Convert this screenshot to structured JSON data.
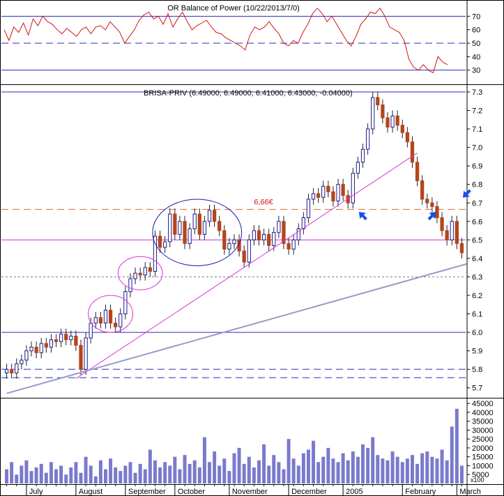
{
  "chart_data": [
    {
      "type": "line",
      "panel": "indicator",
      "title": "OR Balance of Power (10/22/2013/7/0)",
      "ylim": [
        20,
        80
      ],
      "yticks": [
        30,
        40,
        50,
        60,
        70
      ],
      "hlines": [
        {
          "y": 70,
          "style": "solid",
          "color": "#2b2bb5"
        },
        {
          "y": 50,
          "style": "dashed",
          "color": "#2b2bb5"
        },
        {
          "y": 30,
          "style": "solid",
          "color": "#2b2bb5"
        }
      ],
      "series": [
        {
          "color": "#d21414",
          "values": [
            60,
            52,
            62,
            58,
            65,
            56,
            68,
            63,
            70,
            66,
            64,
            60,
            57,
            61,
            58,
            55,
            60,
            62,
            57,
            62,
            63,
            60,
            66,
            62,
            58,
            50,
            55,
            60,
            67,
            71,
            73,
            68,
            70,
            64,
            72,
            62,
            68,
            73,
            66,
            60,
            63,
            65,
            67,
            62,
            58,
            57,
            54,
            52,
            50,
            48,
            45,
            56,
            62,
            60,
            62,
            66,
            61,
            57,
            50,
            48,
            52,
            50,
            58,
            64,
            72,
            76,
            72,
            66,
            70,
            64,
            58,
            52,
            48,
            55,
            64,
            68,
            73,
            72,
            76,
            70,
            62,
            60,
            58,
            52,
            38,
            32,
            30,
            34,
            30,
            28,
            40,
            36,
            34
          ]
        }
      ]
    },
    {
      "type": "candlestick",
      "panel": "price",
      "title": "BRISA-PRIV (6.49000, 6.49000, 6.41000, 6.43000, -0.04000)",
      "ylim": [
        5.65,
        7.33
      ],
      "yticks": [
        5.7,
        5.8,
        5.9,
        6.0,
        6.1,
        6.2,
        6.3,
        6.4,
        6.5,
        6.6,
        6.7,
        6.8,
        6.9,
        7.0,
        7.1,
        7.2,
        7.3
      ],
      "ytick_labels": [
        "5.7",
        "5.8",
        "5.9",
        "6.0",
        "6.1",
        "6.2",
        "6.3",
        "6.4",
        "6.5",
        "6.6",
        "6.7",
        "6.8",
        "6.9",
        "7.0",
        "7.1",
        "7.2",
        "7.3"
      ],
      "close": [
        5.8,
        5.78,
        5.83,
        5.85,
        5.9,
        5.92,
        5.89,
        5.94,
        5.92,
        5.96,
        5.95,
        5.99,
        5.96,
        5.98,
        5.93,
        5.8,
        5.97,
        6.05,
        6.08,
        6.05,
        6.12,
        6.05,
        6.03,
        6.1,
        6.22,
        6.29,
        6.32,
        6.31,
        6.35,
        6.33,
        6.52,
        6.46,
        6.49,
        6.64,
        6.53,
        6.6,
        6.48,
        6.56,
        6.64,
        6.53,
        6.6,
        6.66,
        6.6,
        6.55,
        6.45,
        6.48,
        6.5,
        6.44,
        6.38,
        6.5,
        6.55,
        6.5,
        6.53,
        6.47,
        6.54,
        6.6,
        6.48,
        6.45,
        6.5,
        6.56,
        6.62,
        6.72,
        6.75,
        6.73,
        6.79,
        6.76,
        6.71,
        6.8,
        6.74,
        6.7,
        6.86,
        6.92,
        6.99,
        7.1,
        7.27,
        7.23,
        7.16,
        7.11,
        7.17,
        7.12,
        7.08,
        7.03,
        6.92,
        6.82,
        6.72,
        6.7,
        6.68,
        6.62,
        6.55,
        6.5,
        6.6,
        6.48,
        6.43
      ],
      "hlines": [
        {
          "y": 7.3,
          "style": "solid",
          "color": "#2b2bb5"
        },
        {
          "y": 6.665,
          "style": "dashed",
          "color": "#e07040",
          "label": "6,66€"
        },
        {
          "y": 6.5,
          "style": "solid",
          "color": "#d633d6"
        },
        {
          "y": 6.3,
          "style": "dotted",
          "color": "#808080"
        },
        {
          "y": 6.0,
          "style": "solid",
          "color": "#2b2bb5"
        },
        {
          "y": 5.8,
          "style": "dashed",
          "color": "#2b2bb5"
        },
        {
          "y": 5.755,
          "style": "dashed",
          "color": "#2b2bb5"
        }
      ],
      "annotations": [
        {
          "type": "trendline",
          "color": "#d633d6",
          "from": [
            14,
            5.75
          ],
          "to": [
            83,
            6.97
          ]
        },
        {
          "type": "trendline",
          "color": "#9999cc",
          "from": [
            0,
            5.67
          ],
          "to": [
            93,
            6.37
          ]
        },
        {
          "type": "ellipse",
          "color": "#d633d6",
          "cx": 21,
          "cy": 6.1,
          "rx": 4.5,
          "ry": 0.1
        },
        {
          "type": "ellipse",
          "color": "#d633d6",
          "cx": 27,
          "cy": 6.32,
          "rx": 4.5,
          "ry": 0.09
        },
        {
          "type": "ellipse",
          "color": "#1a1aa6",
          "cx": 38.5,
          "cy": 6.54,
          "rx": 9,
          "ry": 0.18
        },
        {
          "type": "arrow",
          "color": "#1a4fe0",
          "x": 72,
          "y": 6.63,
          "dir": "nw"
        },
        {
          "type": "arrow",
          "color": "#1a4fe0",
          "x": 86,
          "y": 6.63,
          "dir": "ne"
        },
        {
          "type": "arrow",
          "color": "#1a4fe0",
          "x": 93,
          "y": 6.75,
          "dir": "sw"
        }
      ]
    },
    {
      "type": "bar",
      "panel": "volume",
      "ylim": [
        0,
        47000
      ],
      "yticks": [
        5000,
        10000,
        15000,
        20000,
        25000,
        30000,
        35000,
        40000,
        45000
      ],
      "ytick_labels": [
        "5000",
        "10000",
        "15000",
        "20000",
        "25000",
        "30000",
        "35000",
        "40000",
        "45000"
      ],
      "scale_label": "x100",
      "values": [
        8000,
        12000,
        5000,
        10000,
        13000,
        7000,
        9000,
        11000,
        6000,
        12000,
        8000,
        10000,
        5000,
        9000,
        12000,
        6000,
        15000,
        10000,
        4000,
        13000,
        8000,
        14000,
        9000,
        7000,
        10000,
        12000,
        6000,
        11000,
        8000,
        19000,
        13000,
        9000,
        12000,
        10000,
        15000,
        8000,
        16000,
        11000,
        13000,
        9000,
        26000,
        12000,
        18000,
        10000,
        14000,
        7000,
        17000,
        20000,
        11000,
        15000,
        9000,
        13000,
        22000,
        10000,
        16000,
        12000,
        8000,
        25000,
        14000,
        10000,
        17000,
        19000,
        24000,
        12000,
        15000,
        20000,
        14000,
        12000,
        17000,
        13000,
        18000,
        15000,
        22000,
        20000,
        26000,
        16000,
        14000,
        13000,
        18000,
        15000,
        12000,
        14000,
        16000,
        11000,
        17000,
        18000,
        15000,
        14000,
        19000,
        13000,
        32000,
        42000,
        10000
      ],
      "color": "#7a7acc"
    }
  ],
  "xaxis": {
    "labels": [
      {
        "text": "July",
        "index": 4
      },
      {
        "text": "August",
        "index": 14
      },
      {
        "text": "September",
        "index": 24
      },
      {
        "text": "October",
        "index": 34
      },
      {
        "text": "November",
        "index": 45
      },
      {
        "text": "December",
        "index": 57
      },
      {
        "text": "2005",
        "index": 68
      },
      {
        "text": "February",
        "index": 80
      },
      {
        "text": "March",
        "index": 91
      }
    ]
  }
}
